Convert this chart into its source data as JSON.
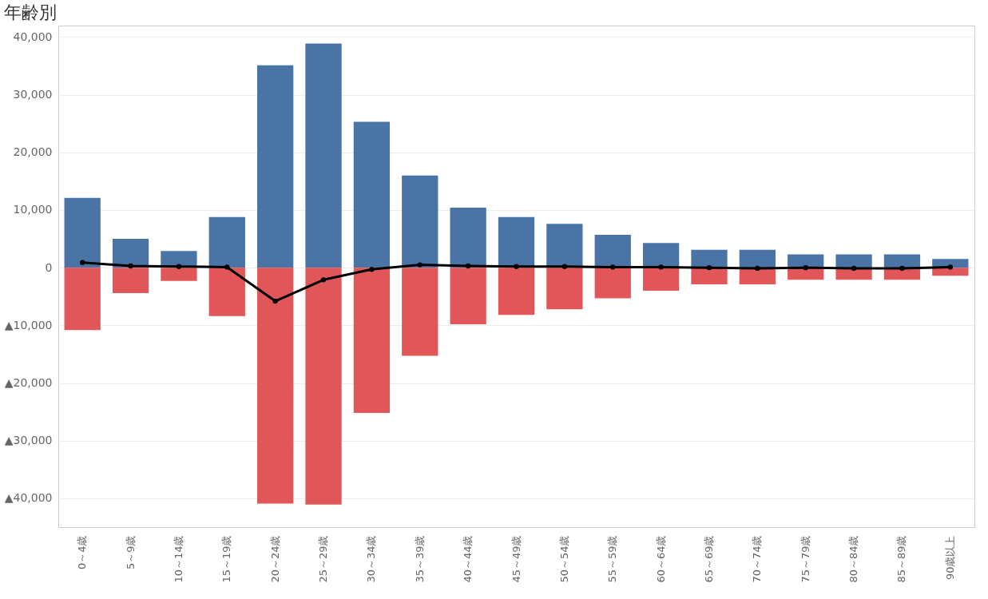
{
  "chart_data": {
    "type": "bar",
    "title": "年齢別",
    "stacked": true,
    "categories": [
      "0～4歳",
      "5～9歳",
      "10～14歳",
      "15～19歳",
      "20～24歳",
      "25～29歳",
      "30～34歳",
      "35～39歳",
      "40～44歳",
      "45～49歳",
      "50～54歳",
      "55～59歳",
      "60～64歳",
      "65～69歳",
      "70～74歳",
      "75～79歳",
      "80～84歳",
      "85～89歳",
      "90歳以上"
    ],
    "series": [
      {
        "color": "#4a73a6",
        "values": [
          12100,
          5000,
          2900,
          8800,
          35100,
          38900,
          25300,
          16000,
          10400,
          8800,
          7600,
          5700,
          4300,
          3100,
          3100,
          2300,
          2300,
          2300,
          1500
        ]
      },
      {
        "color": "#e15759",
        "values": [
          -10800,
          -4400,
          -2300,
          -8400,
          -40900,
          -41100,
          -25200,
          -15300,
          -9800,
          -8200,
          -7200,
          -5300,
          -4000,
          -2900,
          -2900,
          -2100,
          -2100,
          -2100,
          -1400
        ]
      },
      {
        "type": "line",
        "color": "#000000",
        "marker": "circle",
        "values": [
          900,
          300,
          200,
          100,
          -5800,
          -2100,
          -300,
          500,
          300,
          200,
          200,
          100,
          100,
          0,
          -100,
          0,
          -100,
          -100,
          100
        ]
      }
    ],
    "ylim": [
      -45000,
      42000
    ],
    "yticks": [
      {
        "value": -40000,
        "label": "▲40,000"
      },
      {
        "value": -30000,
        "label": "▲30,000"
      },
      {
        "value": -20000,
        "label": "▲20,000"
      },
      {
        "value": -10000,
        "label": "▲10,000"
      },
      {
        "value": 0,
        "label": "0"
      },
      {
        "value": 10000,
        "label": "10,000"
      },
      {
        "value": 20000,
        "label": "20,000"
      },
      {
        "value": 30000,
        "label": "30,000"
      },
      {
        "value": 40000,
        "label": "40,000"
      }
    ],
    "grid": "y"
  }
}
